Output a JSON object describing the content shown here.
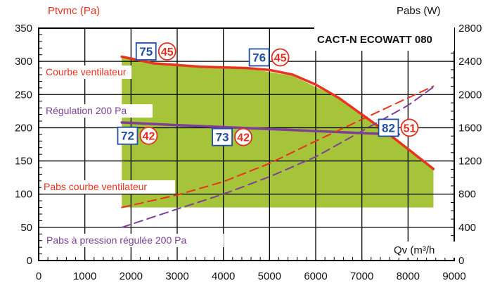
{
  "chart_data": {
    "type": "line",
    "title": "CACT-N ECOWATT 080",
    "ylabel_left": "Ptvmc (Pa)",
    "ylabel_right": "Pabs (W)",
    "xlabel": "Qv (m³/h",
    "xlim": [
      0,
      9000
    ],
    "ylim_left": [
      0,
      350
    ],
    "ylim_right": [
      0,
      2800
    ],
    "x_ticks": [
      "0",
      "1000",
      "2000",
      "3000",
      "4000",
      "5000",
      "6000",
      "7000",
      "8000",
      "9000"
    ],
    "y_left_ticks": [
      "0",
      "50",
      "100",
      "150",
      "200",
      "250",
      "300",
      "350"
    ],
    "y_right_ticks": [
      "0",
      "400",
      "800",
      "1200",
      "1600",
      "2000",
      "2400",
      "2800"
    ],
    "grid": true,
    "colors": {
      "fan": "#e8331f",
      "regulation": "#7e3f98",
      "area": "#a5c43a",
      "square": "#1f4fa0",
      "circle": "#e0301e"
    },
    "operating_area": {
      "upper": [
        [
          1800,
          308
        ],
        [
          2500,
          298
        ],
        [
          3500,
          292
        ],
        [
          4500,
          290
        ],
        [
          5500,
          278
        ],
        [
          6500,
          245
        ],
        [
          7500,
          195
        ],
        [
          8100,
          165
        ],
        [
          8550,
          138
        ]
      ],
      "lower": [
        [
          1800,
          80
        ],
        [
          8550,
          80
        ]
      ]
    },
    "series": [
      {
        "name": "Courbe ventilateur",
        "axis": "left",
        "style": "solid",
        "color": "#e8331f",
        "x": [
          1800,
          2500,
          3500,
          4500,
          5000,
          5500,
          6000,
          6500,
          7000,
          7500,
          8000,
          8550
        ],
        "y": [
          307,
          297,
          292,
          290,
          287,
          280,
          265,
          245,
          220,
          195,
          168,
          138
        ]
      },
      {
        "name": "Régulation 200 Pa",
        "axis": "left",
        "style": "solid",
        "color": "#7e3f98",
        "x": [
          1800,
          3000,
          5000,
          7000,
          7800
        ],
        "y": [
          208,
          204,
          198,
          192,
          190
        ]
      },
      {
        "name": "Pabs courbe ventilateur",
        "axis": "right",
        "style": "dashed",
        "color": "#e8331f",
        "x": [
          1800,
          3000,
          4000,
          5000,
          6000,
          7000,
          8000,
          8550
        ],
        "y": [
          640,
          790,
          950,
          1170,
          1440,
          1700,
          1960,
          2100
        ]
      },
      {
        "name": "Pabs à pression régulée 200 Pa",
        "axis": "right",
        "style": "dashed",
        "color": "#7e3f98",
        "x": [
          1800,
          3000,
          4000,
          5000,
          6000,
          7000,
          8000,
          8550
        ],
        "y": [
          400,
          620,
          800,
          1010,
          1250,
          1560,
          1870,
          2090
        ]
      }
    ],
    "markers": [
      {
        "square": "75",
        "circle": "45",
        "x": 2600,
        "y": 315
      },
      {
        "square": "76",
        "circle": "45",
        "x": 5050,
        "y": 306
      },
      {
        "square": "72",
        "circle": "42",
        "x": 2200,
        "y": 188
      },
      {
        "square": "73",
        "circle": "42",
        "x": 4250,
        "y": 186
      },
      {
        "square": "82",
        "circle": "51",
        "x": 7850,
        "y": 200
      }
    ]
  }
}
